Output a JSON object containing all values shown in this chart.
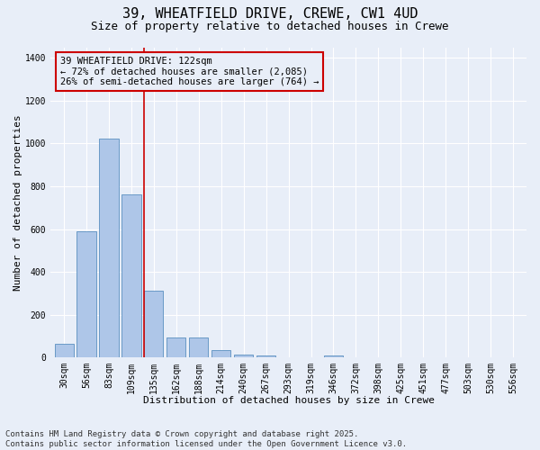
{
  "title1": "39, WHEATFIELD DRIVE, CREWE, CW1 4UD",
  "title2": "Size of property relative to detached houses in Crewe",
  "xlabel": "Distribution of detached houses by size in Crewe",
  "ylabel": "Number of detached properties",
  "bar_labels": [
    "30sqm",
    "56sqm",
    "83sqm",
    "109sqm",
    "135sqm",
    "162sqm",
    "188sqm",
    "214sqm",
    "240sqm",
    "267sqm",
    "293sqm",
    "319sqm",
    "346sqm",
    "372sqm",
    "398sqm",
    "425sqm",
    "451sqm",
    "477sqm",
    "503sqm",
    "530sqm",
    "556sqm"
  ],
  "bar_values": [
    65,
    590,
    1025,
    760,
    310,
    95,
    95,
    35,
    15,
    10,
    0,
    0,
    10,
    0,
    0,
    0,
    0,
    0,
    0,
    0,
    0
  ],
  "bar_color": "#aec6e8",
  "bar_edgecolor": "#5a8fc0",
  "bg_color": "#e8eef8",
  "grid_color": "#ffffff",
  "vline_x": 3.58,
  "vline_color": "#cc0000",
  "annotation_text": "39 WHEATFIELD DRIVE: 122sqm\n← 72% of detached houses are smaller (2,085)\n26% of semi-detached houses are larger (764) →",
  "annotation_box_color": "#cc0000",
  "ylim": [
    0,
    1450
  ],
  "yticks": [
    0,
    200,
    400,
    600,
    800,
    1000,
    1200,
    1400
  ],
  "footer": "Contains HM Land Registry data © Crown copyright and database right 2025.\nContains public sector information licensed under the Open Government Licence v3.0.",
  "title1_fontsize": 11,
  "title2_fontsize": 9,
  "xlabel_fontsize": 8,
  "ylabel_fontsize": 8,
  "tick_fontsize": 7,
  "footer_fontsize": 6.5,
  "ann_fontsize": 7.5
}
